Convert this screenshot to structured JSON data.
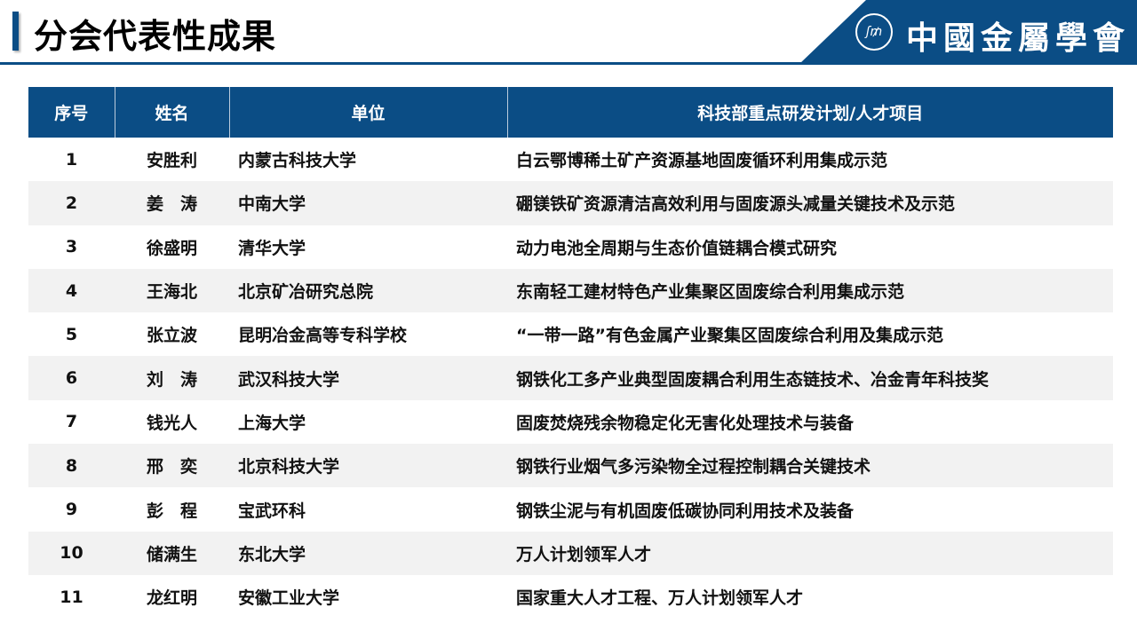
{
  "header": {
    "title": "分会代表性成果",
    "brand": "中國金屬學會",
    "logo_text": "SM"
  },
  "table": {
    "columns": [
      "序号",
      "姓名",
      "单位",
      "科技部重点研发计划/人才项目"
    ],
    "rows": [
      [
        "1",
        "安胜利",
        "内蒙古科技大学",
        "白云鄂博稀土矿产资源基地固废循环利用集成示范"
      ],
      [
        "2",
        "姜　涛",
        "中南大学",
        "硼镁铁矿资源清洁高效利用与固废源头减量关键技术及示范"
      ],
      [
        "3",
        "徐盛明",
        "清华大学",
        "动力电池全周期与生态价值链耦合模式研究"
      ],
      [
        "4",
        "王海北",
        "北京矿冶研究总院",
        "东南轻工建材特色产业集聚区固废综合利用集成示范"
      ],
      [
        "5",
        "张立波",
        "昆明冶金高等专科学校",
        "“一带一路”有色金属产业聚集区固废综合利用及集成示范"
      ],
      [
        "6",
        "刘　涛",
        "武汉科技大学",
        "钢铁化工多产业典型固废耦合利用生态链技术、冶金青年科技奖"
      ],
      [
        "7",
        "钱光人",
        "上海大学",
        "固废焚烧残余物稳定化无害化处理技术与装备"
      ],
      [
        "8",
        "邢　奕",
        "北京科技大学",
        "钢铁行业烟气多污染物全过程控制耦合关键技术"
      ],
      [
        "9",
        "彭　程",
        "宝武环科",
        "钢铁尘泥与有机固废低碳协同利用技术及装备"
      ],
      [
        "10",
        "储满生",
        "东北大学",
        "万人计划领军人才"
      ],
      [
        "11",
        "龙红明",
        "安徽工业大学",
        "国家重大人才工程、万人计划领军人才"
      ]
    ]
  },
  "colors": {
    "primary": "#0b4d85",
    "stripe": "#f2f2f2"
  }
}
